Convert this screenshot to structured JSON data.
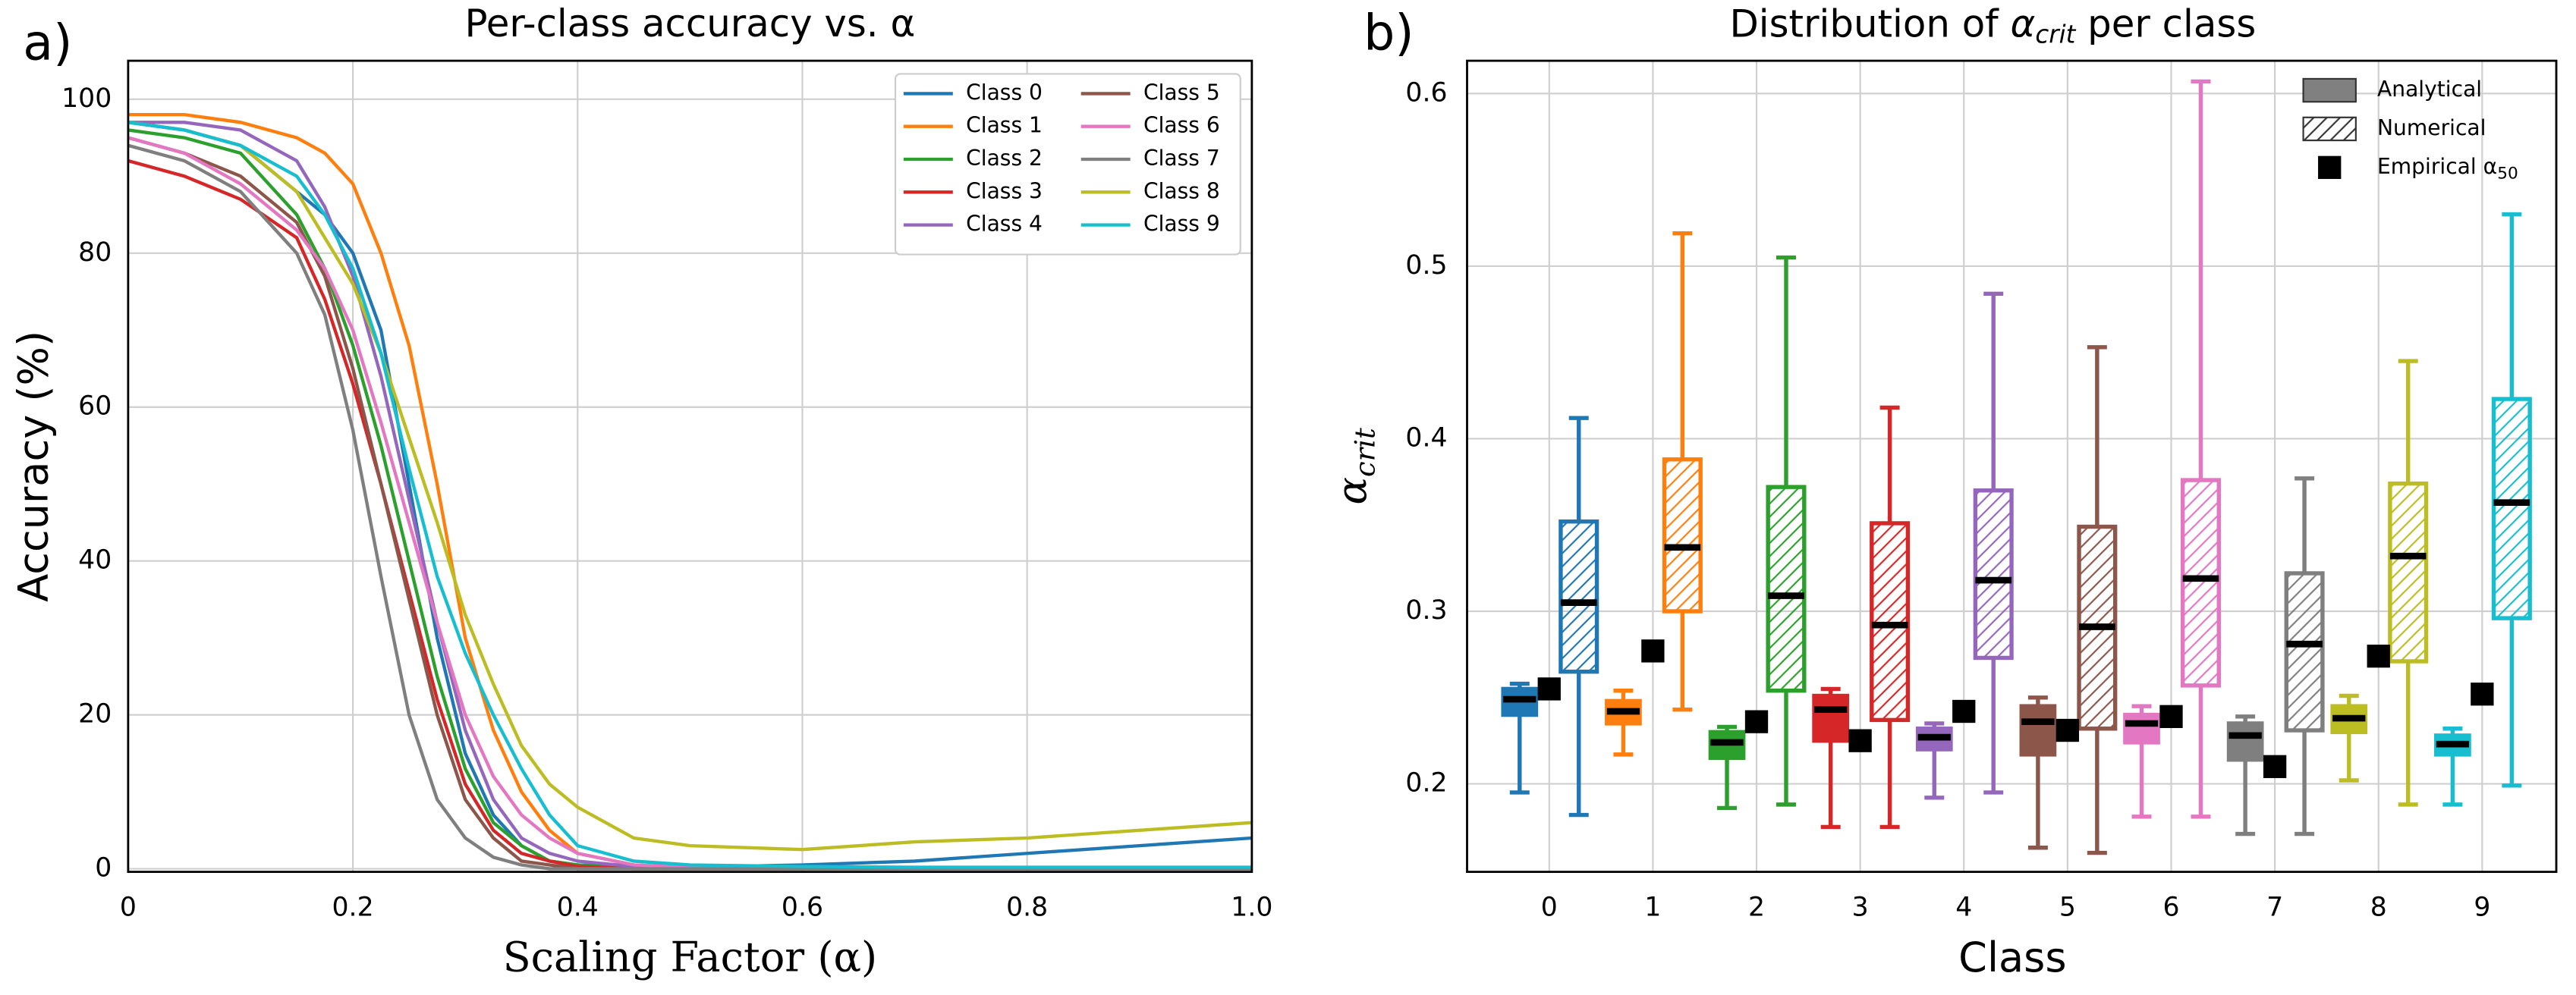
{
  "chart_data": [
    {
      "type": "line",
      "panel_label": "a)",
      "title": "Per-class accuracy vs. α",
      "xlabel": "Scaling Factor (α)",
      "ylabel": "Accuracy (%)",
      "x": [
        0,
        0.05,
        0.1,
        0.15,
        0.175,
        0.2,
        0.225,
        0.25,
        0.275,
        0.3,
        0.325,
        0.35,
        0.375,
        0.4,
        0.45,
        0.5,
        0.6,
        0.7,
        0.8,
        0.9,
        1.0
      ],
      "xlim": [
        0,
        1
      ],
      "xticks": [
        0,
        0.2,
        0.4,
        0.6,
        0.8,
        {
          "value": 1,
          "label": "1.0"
        }
      ],
      "ylim": [
        -0.4,
        105
      ],
      "yticks": [
        0,
        20,
        40,
        60,
        80,
        100
      ],
      "grid": true,
      "legend": "upper right",
      "series": [
        {
          "name": "Class 0",
          "color": "#1f77b4",
          "values": [
            97,
            96,
            94,
            88,
            85,
            80,
            70,
            50,
            30,
            15,
            7,
            3,
            1,
            0.5,
            0.3,
            0.2,
            0.5,
            1,
            2,
            3,
            4
          ]
        },
        {
          "name": "Class 1",
          "color": "#ff7f0e",
          "values": [
            98,
            98,
            97,
            95,
            93,
            89,
            80,
            68,
            50,
            30,
            18,
            10,
            5,
            2,
            0.5,
            0.2,
            0,
            0,
            0,
            0,
            0
          ]
        },
        {
          "name": "Class 2",
          "color": "#2ca02c",
          "values": [
            96,
            95,
            93,
            85,
            78,
            68,
            55,
            40,
            25,
            13,
            6,
            3,
            1,
            0.5,
            0,
            0,
            0,
            0,
            0,
            0,
            0
          ]
        },
        {
          "name": "Class 3",
          "color": "#d62728",
          "values": [
            92,
            90,
            87,
            82,
            74,
            63,
            50,
            36,
            22,
            11,
            5,
            2,
            1,
            0.3,
            0,
            0,
            0,
            0,
            0,
            0,
            0
          ]
        },
        {
          "name": "Class 4",
          "color": "#9467bd",
          "values": [
            97,
            97,
            96,
            92,
            86,
            77,
            64,
            48,
            32,
            18,
            9,
            4,
            2,
            1,
            0.3,
            0,
            0,
            0,
            0,
            0,
            0
          ]
        },
        {
          "name": "Class 5",
          "color": "#8c564b",
          "values": [
            95,
            93,
            90,
            84,
            77,
            65,
            50,
            35,
            20,
            9,
            4,
            1,
            0.5,
            0,
            0,
            0,
            0,
            0,
            0,
            0,
            0
          ]
        },
        {
          "name": "Class 6",
          "color": "#e377c2",
          "values": [
            95,
            93,
            89,
            83,
            78,
            70,
            58,
            45,
            32,
            20,
            12,
            7,
            4,
            2,
            0.5,
            0.2,
            0,
            0,
            0,
            0,
            0
          ]
        },
        {
          "name": "Class 7",
          "color": "#7f7f7f",
          "values": [
            94,
            92,
            88,
            80,
            72,
            57,
            38,
            20,
            9,
            4,
            1.5,
            0.5,
            0,
            0,
            0,
            0,
            0,
            0,
            0,
            0,
            0
          ]
        },
        {
          "name": "Class 8",
          "color": "#bcbd22",
          "values": [
            97,
            96,
            94,
            88,
            82,
            76,
            67,
            56,
            45,
            33,
            24,
            16,
            11,
            8,
            4,
            3,
            2.5,
            3.5,
            4,
            5,
            6
          ]
        },
        {
          "name": "Class 9",
          "color": "#17becf",
          "values": [
            97,
            96,
            94,
            90,
            85,
            78,
            67,
            52,
            38,
            28,
            20,
            13,
            7,
            3,
            1,
            0.5,
            0.3,
            0.2,
            0.2,
            0.2,
            0.2
          ]
        }
      ]
    },
    {
      "type": "box",
      "panel_label": "b)",
      "title": "Distribution of ",
      "title_symbol": "α",
      "title_subscript": "crit",
      "title_end": " per class",
      "xlabel": "Class",
      "ylabel_symbol": "α",
      "ylabel_subscript": "crit",
      "categories": [
        "0",
        "1",
        "2",
        "3",
        "4",
        "5",
        "6",
        "7",
        "8",
        "9"
      ],
      "colors": [
        "#1f77b4",
        "#ff7f0e",
        "#2ca02c",
        "#d62728",
        "#9467bd",
        "#8c564b",
        "#e377c2",
        "#7f7f7f",
        "#bcbd22",
        "#17becf"
      ],
      "ylim": [
        0.149,
        0.619
      ],
      "yticks": [
        0.2,
        0.3,
        0.4,
        0.5,
        0.6
      ],
      "grid": true,
      "legend": "upper right",
      "series": [
        {
          "name": "Analytical",
          "style": "filled",
          "boxes": [
            {
              "whislo": 0.195,
              "q1": 0.24,
              "med": 0.249,
              "q3": 0.255,
              "whishi": 0.258
            },
            {
              "whislo": 0.217,
              "q1": 0.235,
              "med": 0.242,
              "q3": 0.248,
              "whishi": 0.254
            },
            {
              "whislo": 0.186,
              "q1": 0.215,
              "med": 0.224,
              "q3": 0.23,
              "whishi": 0.233
            },
            {
              "whislo": 0.175,
              "q1": 0.225,
              "med": 0.243,
              "q3": 0.251,
              "whishi": 0.255
            },
            {
              "whislo": 0.192,
              "q1": 0.22,
              "med": 0.227,
              "q3": 0.232,
              "whishi": 0.235
            },
            {
              "whislo": 0.163,
              "q1": 0.217,
              "med": 0.236,
              "q3": 0.245,
              "whishi": 0.25
            },
            {
              "whislo": 0.181,
              "q1": 0.224,
              "med": 0.235,
              "q3": 0.24,
              "whishi": 0.245
            },
            {
              "whislo": 0.171,
              "q1": 0.214,
              "med": 0.228,
              "q3": 0.235,
              "whishi": 0.239
            },
            {
              "whislo": 0.202,
              "q1": 0.23,
              "med": 0.238,
              "q3": 0.245,
              "whishi": 0.251
            },
            {
              "whislo": 0.188,
              "q1": 0.217,
              "med": 0.223,
              "q3": 0.228,
              "whishi": 0.232
            }
          ]
        },
        {
          "name": "Numerical",
          "style": "hatched",
          "boxes": [
            {
              "whislo": 0.182,
              "q1": 0.265,
              "med": 0.305,
              "q3": 0.352,
              "whishi": 0.412
            },
            {
              "whislo": 0.243,
              "q1": 0.3,
              "med": 0.337,
              "q3": 0.388,
              "whishi": 0.519
            },
            {
              "whislo": 0.188,
              "q1": 0.254,
              "med": 0.309,
              "q3": 0.372,
              "whishi": 0.505
            },
            {
              "whislo": 0.175,
              "q1": 0.237,
              "med": 0.292,
              "q3": 0.351,
              "whishi": 0.418
            },
            {
              "whislo": 0.195,
              "q1": 0.273,
              "med": 0.318,
              "q3": 0.37,
              "whishi": 0.484
            },
            {
              "whislo": 0.16,
              "q1": 0.232,
              "med": 0.291,
              "q3": 0.349,
              "whishi": 0.453
            },
            {
              "whislo": 0.181,
              "q1": 0.257,
              "med": 0.319,
              "q3": 0.376,
              "whishi": 0.607
            },
            {
              "whislo": 0.171,
              "q1": 0.231,
              "med": 0.281,
              "q3": 0.322,
              "whishi": 0.377
            },
            {
              "whislo": 0.188,
              "q1": 0.271,
              "med": 0.332,
              "q3": 0.374,
              "whishi": 0.445
            },
            {
              "whislo": 0.199,
              "q1": 0.296,
              "med": 0.363,
              "q3": 0.423,
              "whishi": 0.53
            }
          ]
        },
        {
          "name": "Empirical α",
          "name_subscript": "50",
          "style": "marker",
          "color": "#000000",
          "values": [
            0.255,
            0.277,
            0.236,
            0.225,
            0.242,
            0.231,
            0.239,
            0.21,
            0.274,
            0.252
          ]
        }
      ]
    }
  ]
}
